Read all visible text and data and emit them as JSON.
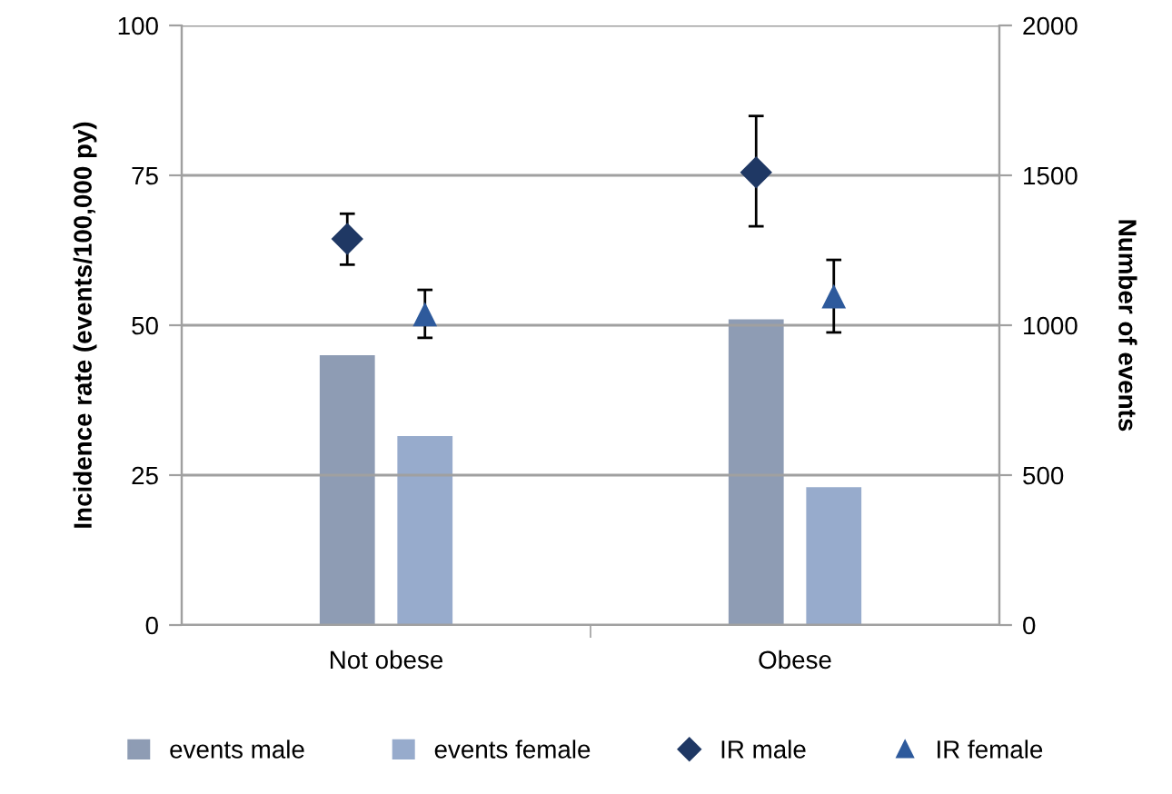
{
  "chart_data": {
    "type": "bar",
    "categories": [
      "Not obese",
      "Obese"
    ],
    "ylabel": "Incidence rate (events/100,000 py)",
    "y2label": "Number of events",
    "ylim": [
      0,
      100
    ],
    "yticks": [
      0,
      25,
      50,
      75,
      100
    ],
    "y2lim": [
      0,
      2000
    ],
    "y2ticks": [
      0,
      500,
      1000,
      1500,
      2000
    ],
    "grid": "y",
    "legend": "bottom",
    "series": [
      {
        "name": "events male",
        "axis": "y2",
        "color": "#8e9cb4",
        "values": [
          900,
          1020
        ]
      },
      {
        "name": "events female",
        "axis": "y2",
        "color": "#97abcc",
        "values": [
          630,
          460
        ]
      },
      {
        "name": "IR male",
        "type": "scatter",
        "marker": "diamond",
        "color": "#1f3864",
        "values": [
          64.4,
          75.5
        ],
        "errors": [
          [
            60.1,
            68.6
          ],
          [
            66.5,
            84.9
          ]
        ]
      },
      {
        "name": "IR female",
        "type": "scatter",
        "marker": "triangle",
        "color": "#2e5a9c",
        "values": [
          51.7,
          54.7
        ],
        "errors": [
          [
            47.9,
            55.9
          ],
          [
            48.8,
            60.9
          ]
        ]
      }
    ]
  }
}
